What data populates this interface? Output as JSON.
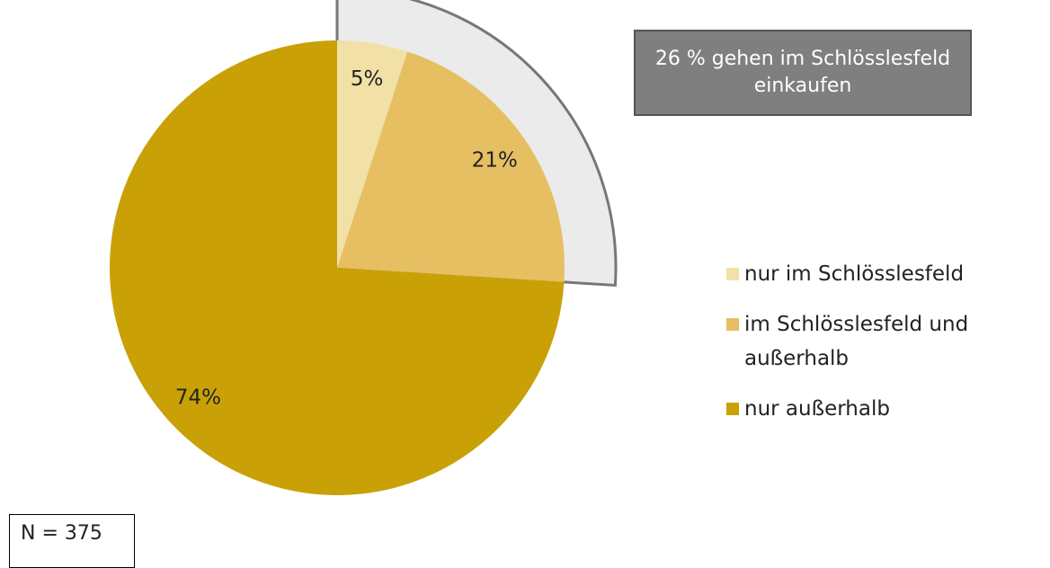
{
  "chart_data": {
    "type": "pie",
    "categories": [
      "nur im Schlösslesfeld",
      "im Schlösslesfeld und außerhalb",
      "nur außerhalb"
    ],
    "values": [
      5,
      21,
      74
    ],
    "value_labels": [
      "5%",
      "21%",
      "74%"
    ],
    "colors": [
      "#f2e1a6",
      "#e6bf63",
      "#c9a106"
    ],
    "annotation": "26 % gehen im Schlösslesfeld einkaufen",
    "note": "N = 375"
  }
}
